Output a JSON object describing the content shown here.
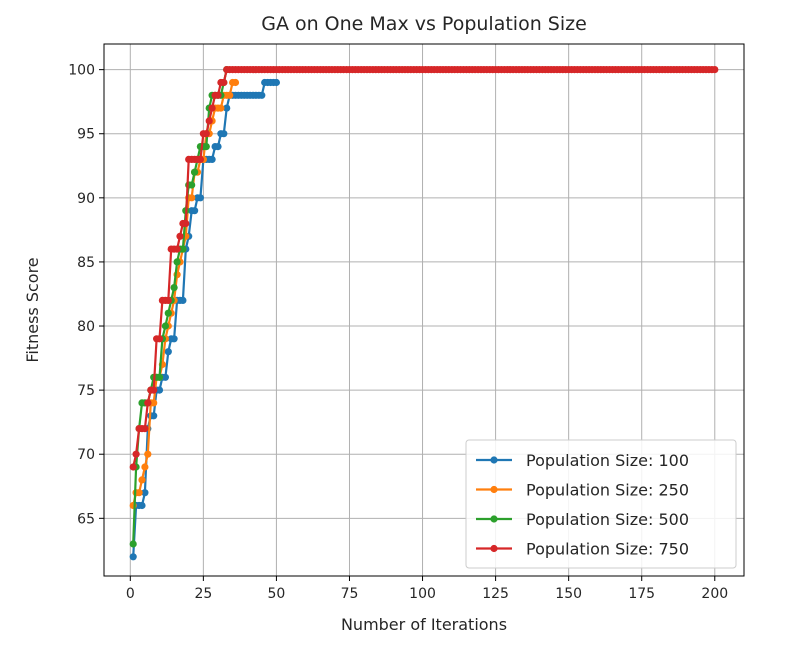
{
  "chart_data": {
    "type": "line",
    "title": "GA on One Max vs Population Size",
    "xlabel": "Number of Iterations",
    "ylabel": "Fitness Score",
    "xlim": [
      -9,
      210
    ],
    "ylim": [
      60.5,
      102
    ],
    "xticks": [
      0,
      25,
      50,
      75,
      100,
      125,
      150,
      175,
      200
    ],
    "yticks": [
      65,
      70,
      75,
      80,
      85,
      90,
      95,
      100
    ],
    "grid": true,
    "legend_position": "lower-right",
    "series": [
      {
        "name": "Population Size: 100",
        "color": "#1f77b4",
        "x": [
          1,
          2,
          3,
          4,
          5,
          6,
          7,
          8,
          9,
          10,
          11,
          12,
          13,
          14,
          15,
          16,
          17,
          18,
          19,
          20,
          21,
          22,
          23,
          24,
          25,
          26,
          27,
          28,
          29,
          30,
          31,
          32,
          33,
          34,
          35,
          36,
          37,
          38,
          39,
          40,
          41,
          42,
          43,
          44,
          45,
          46,
          47,
          48,
          49,
          50
        ],
        "y": [
          62,
          66,
          66,
          66,
          67,
          72,
          73,
          73,
          75,
          75,
          76,
          76,
          78,
          79,
          79,
          82,
          82,
          82,
          86,
          87,
          89,
          89,
          90,
          90,
          93,
          93,
          93,
          93,
          94,
          94,
          95,
          95,
          97,
          98,
          98,
          98,
          98,
          98,
          98,
          98,
          98,
          98,
          98,
          98,
          98,
          99,
          99,
          99,
          99,
          99
        ]
      },
      {
        "name": "Population Size: 250",
        "color": "#ff7f0e",
        "x": [
          1,
          2,
          3,
          4,
          5,
          6,
          7,
          8,
          9,
          10,
          11,
          12,
          13,
          14,
          15,
          16,
          17,
          18,
          19,
          20,
          21,
          22,
          23,
          24,
          25,
          26,
          27,
          28,
          29,
          30,
          31,
          32,
          33,
          34,
          35,
          36
        ],
        "y": [
          66,
          67,
          67,
          68,
          69,
          70,
          74,
          74,
          76,
          76,
          77,
          79,
          80,
          81,
          82,
          84,
          85,
          86,
          87,
          90,
          90,
          92,
          92,
          93,
          93,
          95,
          95,
          96,
          97,
          97,
          97,
          98,
          98,
          98,
          99,
          99
        ]
      },
      {
        "name": "Population Size: 500",
        "color": "#2ca02c",
        "x": [
          1,
          2,
          3,
          4,
          5,
          6,
          7,
          8,
          9,
          10,
          11,
          12,
          13,
          14,
          15,
          16,
          17,
          18,
          19,
          20,
          21,
          22,
          23,
          24,
          25,
          26,
          27,
          28,
          29,
          30,
          31,
          32,
          33
        ],
        "y": [
          63,
          69,
          72,
          74,
          74,
          74,
          75,
          76,
          76,
          76,
          79,
          80,
          81,
          82,
          83,
          85,
          86,
          86,
          89,
          91,
          91,
          92,
          93,
          94,
          94,
          94,
          97,
          98,
          98,
          98,
          98,
          99,
          100
        ]
      },
      {
        "name": "Population Size: 750",
        "color": "#d62728",
        "x": [
          1,
          2,
          3,
          4,
          5,
          6,
          7,
          8,
          9,
          10,
          11,
          12,
          13,
          14,
          15,
          16,
          17,
          18,
          19,
          20,
          21,
          22,
          23,
          24,
          25,
          26,
          27,
          28,
          29,
          30,
          31,
          32,
          33,
          34,
          35,
          36,
          37,
          38,
          39,
          40,
          41,
          42,
          43,
          44,
          45,
          46,
          47,
          48,
          49,
          50,
          51,
          52,
          53,
          54,
          55,
          56,
          57,
          58,
          59,
          60,
          61,
          62,
          63,
          64,
          65,
          66,
          67,
          68,
          69,
          70,
          71,
          72,
          73,
          74,
          75,
          76,
          77,
          78,
          79,
          80,
          81,
          82,
          83,
          84,
          85,
          86,
          87,
          88,
          89,
          90,
          91,
          92,
          93,
          94,
          95,
          96,
          97,
          98,
          99,
          100,
          101,
          102,
          103,
          104,
          105,
          106,
          107,
          108,
          109,
          110,
          111,
          112,
          113,
          114,
          115,
          116,
          117,
          118,
          119,
          120,
          121,
          122,
          123,
          124,
          125,
          126,
          127,
          128,
          129,
          130,
          131,
          132,
          133,
          134,
          135,
          136,
          137,
          138,
          139,
          140,
          141,
          142,
          143,
          144,
          145,
          146,
          147,
          148,
          149,
          150,
          151,
          152,
          153,
          154,
          155,
          156,
          157,
          158,
          159,
          160,
          161,
          162,
          163,
          164,
          165,
          166,
          167,
          168,
          169,
          170,
          171,
          172,
          173,
          174,
          175,
          176,
          177,
          178,
          179,
          180,
          181,
          182,
          183,
          184,
          185,
          186,
          187,
          188,
          189,
          190,
          191,
          192,
          193,
          194,
          195,
          196,
          197,
          198,
          199,
          200
        ],
        "y": [
          69,
          70,
          72,
          72,
          72,
          74,
          75,
          75,
          79,
          79,
          82,
          82,
          82,
          86,
          86,
          86,
          87,
          88,
          88,
          93,
          93,
          93,
          93,
          93,
          95,
          95,
          96,
          97,
          98,
          98,
          99,
          99,
          100,
          100,
          100,
          100,
          100,
          100,
          100,
          100,
          100,
          100,
          100,
          100,
          100,
          100,
          100,
          100,
          100,
          100,
          100,
          100,
          100,
          100,
          100,
          100,
          100,
          100,
          100,
          100,
          100,
          100,
          100,
          100,
          100,
          100,
          100,
          100,
          100,
          100,
          100,
          100,
          100,
          100,
          100,
          100,
          100,
          100,
          100,
          100,
          100,
          100,
          100,
          100,
          100,
          100,
          100,
          100,
          100,
          100,
          100,
          100,
          100,
          100,
          100,
          100,
          100,
          100,
          100,
          100,
          100,
          100,
          100,
          100,
          100,
          100,
          100,
          100,
          100,
          100,
          100,
          100,
          100,
          100,
          100,
          100,
          100,
          100,
          100,
          100,
          100,
          100,
          100,
          100,
          100,
          100,
          100,
          100,
          100,
          100,
          100,
          100,
          100,
          100,
          100,
          100,
          100,
          100,
          100,
          100,
          100,
          100,
          100,
          100,
          100,
          100,
          100,
          100,
          100,
          100,
          100,
          100,
          100,
          100,
          100,
          100,
          100,
          100,
          100,
          100,
          100,
          100,
          100,
          100,
          100,
          100,
          100,
          100,
          100,
          100,
          100,
          100,
          100,
          100,
          100,
          100,
          100,
          100,
          100,
          100,
          100,
          100,
          100,
          100,
          100,
          100,
          100,
          100,
          100,
          100,
          100,
          100,
          100,
          100,
          100,
          100,
          100,
          100,
          100,
          100
        ]
      }
    ]
  }
}
